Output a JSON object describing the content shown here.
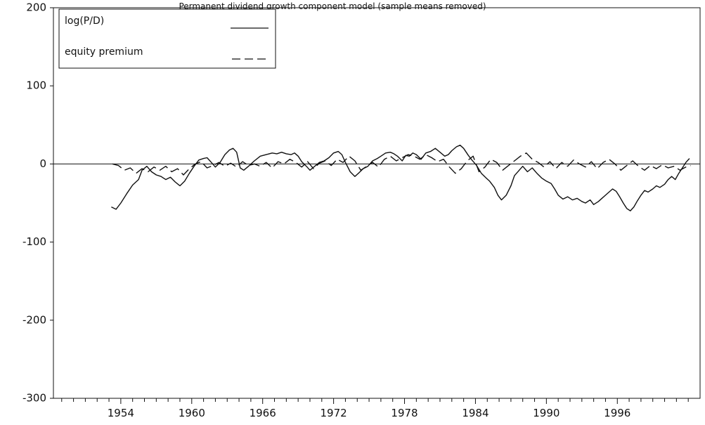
{
  "chart_data": {
    "type": "line",
    "title": "Permanent dividend growth component model (sample means removed)",
    "xlabel": "",
    "ylabel": "",
    "xlim": [
      1948.3,
      2003.0
    ],
    "ylim": [
      -300,
      200
    ],
    "x_tick_labels": [
      "1954",
      "1960",
      "1966",
      "1972",
      "1978",
      "1984",
      "1990",
      "1996"
    ],
    "x_tick_values": [
      1954,
      1960,
      1966,
      1972,
      1978,
      1984,
      1990,
      1996
    ],
    "y_tick_labels": [
      "200",
      "100",
      "0",
      "-100",
      "-200",
      "-300"
    ],
    "y_tick_values": [
      200,
      100,
      0,
      -100,
      -200,
      -300
    ],
    "grid": false,
    "zero_line": true,
    "legend_position": "top-left",
    "series": [
      {
        "name": "log(P/D)",
        "style": "solid",
        "color": "#111111",
        "points": [
          [
            1953.2,
            -55
          ],
          [
            1953.6,
            -58
          ],
          [
            1954.0,
            -50
          ],
          [
            1954.5,
            -38
          ],
          [
            1955.0,
            -27
          ],
          [
            1955.5,
            -20
          ],
          [
            1955.8,
            -8
          ],
          [
            1956.2,
            -3
          ],
          [
            1956.6,
            -10
          ],
          [
            1957.0,
            -14
          ],
          [
            1957.4,
            -16
          ],
          [
            1957.8,
            -20
          ],
          [
            1958.2,
            -17
          ],
          [
            1958.6,
            -23
          ],
          [
            1959.0,
            -28
          ],
          [
            1959.4,
            -22
          ],
          [
            1959.8,
            -12
          ],
          [
            1960.2,
            -3
          ],
          [
            1960.6,
            5
          ],
          [
            1961.0,
            7
          ],
          [
            1961.3,
            8
          ],
          [
            1961.6,
            3
          ],
          [
            1962.0,
            -4
          ],
          [
            1962.4,
            2
          ],
          [
            1962.8,
            12
          ],
          [
            1963.2,
            18
          ],
          [
            1963.5,
            20
          ],
          [
            1963.8,
            15
          ],
          [
            1964.1,
            -5
          ],
          [
            1964.4,
            -8
          ],
          [
            1964.8,
            -3
          ],
          [
            1965.3,
            4
          ],
          [
            1965.8,
            10
          ],
          [
            1966.3,
            12
          ],
          [
            1966.8,
            14
          ],
          [
            1967.2,
            13
          ],
          [
            1967.6,
            15
          ],
          [
            1968.0,
            13
          ],
          [
            1968.4,
            12
          ],
          [
            1968.7,
            14
          ],
          [
            1969.0,
            10
          ],
          [
            1969.3,
            3
          ],
          [
            1969.7,
            -3
          ],
          [
            1970.0,
            -8
          ],
          [
            1970.4,
            -3
          ],
          [
            1970.8,
            2
          ],
          [
            1971.2,
            4
          ],
          [
            1971.6,
            8
          ],
          [
            1972.0,
            14
          ],
          [
            1972.4,
            16
          ],
          [
            1972.7,
            12
          ],
          [
            1973.0,
            2
          ],
          [
            1973.4,
            -10
          ],
          [
            1973.8,
            -16
          ],
          [
            1974.1,
            -12
          ],
          [
            1974.5,
            -6
          ],
          [
            1974.9,
            -3
          ],
          [
            1975.3,
            4
          ],
          [
            1975.7,
            7
          ],
          [
            1976.0,
            10
          ],
          [
            1976.4,
            14
          ],
          [
            1976.8,
            15
          ],
          [
            1977.1,
            13
          ],
          [
            1977.4,
            10
          ],
          [
            1977.8,
            4
          ],
          [
            1978.1,
            11
          ],
          [
            1978.4,
            10
          ],
          [
            1978.7,
            14
          ],
          [
            1979.0,
            12
          ],
          [
            1979.4,
            6
          ],
          [
            1979.8,
            14
          ],
          [
            1980.2,
            16
          ],
          [
            1980.6,
            20
          ],
          [
            1981.0,
            15
          ],
          [
            1981.4,
            10
          ],
          [
            1981.7,
            12
          ],
          [
            1982.0,
            17
          ],
          [
            1982.4,
            22
          ],
          [
            1982.7,
            24
          ],
          [
            1983.0,
            20
          ],
          [
            1983.4,
            11
          ],
          [
            1983.7,
            5
          ],
          [
            1984.1,
            -2
          ],
          [
            1984.5,
            -12
          ],
          [
            1984.9,
            -18
          ],
          [
            1985.2,
            -22
          ],
          [
            1985.6,
            -30
          ],
          [
            1985.9,
            -40
          ],
          [
            1986.2,
            -46
          ],
          [
            1986.6,
            -40
          ],
          [
            1987.0,
            -28
          ],
          [
            1987.3,
            -15
          ],
          [
            1987.7,
            -8
          ],
          [
            1988.0,
            -3
          ],
          [
            1988.4,
            -10
          ],
          [
            1988.8,
            -5
          ],
          [
            1989.2,
            -12
          ],
          [
            1989.6,
            -18
          ],
          [
            1990.0,
            -22
          ],
          [
            1990.4,
            -25
          ],
          [
            1990.7,
            -32
          ],
          [
            1991.0,
            -40
          ],
          [
            1991.4,
            -45
          ],
          [
            1991.8,
            -42
          ],
          [
            1992.2,
            -46
          ],
          [
            1992.6,
            -44
          ],
          [
            1993.0,
            -48
          ],
          [
            1993.3,
            -50
          ],
          [
            1993.7,
            -46
          ],
          [
            1994.0,
            -52
          ],
          [
            1994.4,
            -48
          ],
          [
            1994.7,
            -44
          ],
          [
            1995.0,
            -40
          ],
          [
            1995.3,
            -36
          ],
          [
            1995.6,
            -32
          ],
          [
            1995.9,
            -35
          ],
          [
            1996.2,
            -42
          ],
          [
            1996.5,
            -50
          ],
          [
            1996.8,
            -57
          ],
          [
            1997.1,
            -60
          ],
          [
            1997.4,
            -55
          ],
          [
            1997.7,
            -47
          ],
          [
            1998.0,
            -40
          ],
          [
            1998.3,
            -34
          ],
          [
            1998.6,
            -36
          ],
          [
            1999.0,
            -32
          ],
          [
            1999.3,
            -28
          ],
          [
            1999.6,
            -30
          ],
          [
            2000.0,
            -26
          ],
          [
            2000.3,
            -20
          ],
          [
            2000.6,
            -16
          ],
          [
            2000.9,
            -20
          ],
          [
            2001.2,
            -12
          ],
          [
            2001.5,
            -5
          ],
          [
            2001.8,
            2
          ],
          [
            2002.1,
            7
          ]
        ]
      },
      {
        "name": "equity premium",
        "style": "dashed",
        "color": "#111111",
        "points": [
          [
            1953.3,
            0
          ],
          [
            1953.8,
            -2
          ],
          [
            1954.3,
            -8
          ],
          [
            1954.8,
            -5
          ],
          [
            1955.3,
            -12
          ],
          [
            1955.8,
            -6
          ],
          [
            1956.3,
            -10
          ],
          [
            1956.8,
            -4
          ],
          [
            1957.3,
            -8
          ],
          [
            1957.8,
            -3
          ],
          [
            1958.3,
            -10
          ],
          [
            1958.8,
            -6
          ],
          [
            1959.3,
            -14
          ],
          [
            1959.8,
            -6
          ],
          [
            1960.3,
            0
          ],
          [
            1960.8,
            3
          ],
          [
            1961.3,
            -5
          ],
          [
            1961.8,
            -2
          ],
          [
            1962.3,
            2
          ],
          [
            1962.8,
            -3
          ],
          [
            1963.3,
            1
          ],
          [
            1963.8,
            -4
          ],
          [
            1964.3,
            3
          ],
          [
            1964.8,
            -2
          ],
          [
            1965.3,
            0
          ],
          [
            1965.8,
            -3
          ],
          [
            1966.3,
            2
          ],
          [
            1966.8,
            -5
          ],
          [
            1967.3,
            3
          ],
          [
            1967.8,
            0
          ],
          [
            1968.3,
            6
          ],
          [
            1968.8,
            2
          ],
          [
            1969.3,
            -4
          ],
          [
            1969.8,
            3
          ],
          [
            1970.3,
            -6
          ],
          [
            1970.8,
            1
          ],
          [
            1971.3,
            4
          ],
          [
            1971.8,
            -2
          ],
          [
            1972.3,
            6
          ],
          [
            1972.8,
            2
          ],
          [
            1973.3,
            10
          ],
          [
            1973.8,
            4
          ],
          [
            1974.3,
            -8
          ],
          [
            1974.8,
            -3
          ],
          [
            1975.3,
            2
          ],
          [
            1975.8,
            -4
          ],
          [
            1976.3,
            6
          ],
          [
            1976.8,
            10
          ],
          [
            1977.3,
            4
          ],
          [
            1977.8,
            8
          ],
          [
            1978.3,
            12
          ],
          [
            1978.8,
            10
          ],
          [
            1979.3,
            6
          ],
          [
            1979.8,
            12
          ],
          [
            1980.3,
            8
          ],
          [
            1980.8,
            3
          ],
          [
            1981.3,
            6
          ],
          [
            1981.8,
            -4
          ],
          [
            1982.3,
            -12
          ],
          [
            1982.8,
            -6
          ],
          [
            1983.3,
            4
          ],
          [
            1983.8,
            10
          ],
          [
            1984.3,
            -10
          ],
          [
            1984.8,
            -4
          ],
          [
            1985.3,
            6
          ],
          [
            1985.8,
            2
          ],
          [
            1986.3,
            -8
          ],
          [
            1986.8,
            -2
          ],
          [
            1987.3,
            4
          ],
          [
            1987.8,
            10
          ],
          [
            1988.3,
            14
          ],
          [
            1988.8,
            6
          ],
          [
            1989.3,
            2
          ],
          [
            1989.8,
            -4
          ],
          [
            1990.3,
            3
          ],
          [
            1990.8,
            -6
          ],
          [
            1991.3,
            2
          ],
          [
            1991.8,
            -3
          ],
          [
            1992.3,
            5
          ],
          [
            1992.8,
            0
          ],
          [
            1993.3,
            -4
          ],
          [
            1993.8,
            3
          ],
          [
            1994.3,
            -6
          ],
          [
            1994.8,
            2
          ],
          [
            1995.3,
            6
          ],
          [
            1995.8,
            0
          ],
          [
            1996.3,
            -8
          ],
          [
            1996.8,
            -2
          ],
          [
            1997.3,
            4
          ],
          [
            1997.8,
            -3
          ],
          [
            1998.3,
            -8
          ],
          [
            1998.8,
            -2
          ],
          [
            1999.3,
            -6
          ],
          [
            1999.8,
            -1
          ],
          [
            2000.3,
            -5
          ],
          [
            2000.8,
            -3
          ],
          [
            2001.3,
            -8
          ],
          [
            2001.8,
            -4
          ],
          [
            2002.2,
            -2
          ]
        ]
      }
    ]
  }
}
